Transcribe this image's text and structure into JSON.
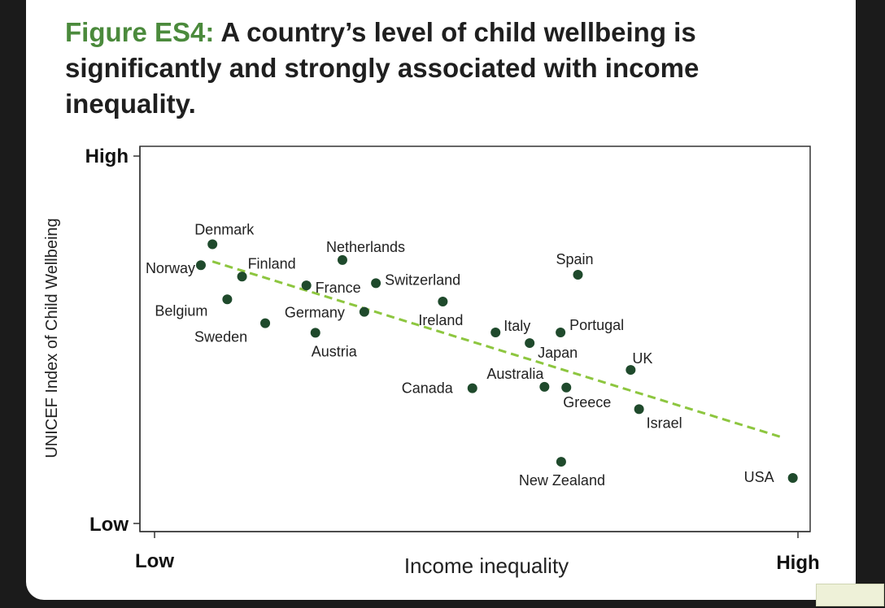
{
  "title": {
    "prefix": "Figure ES4:",
    "text": "A country’s level of child wellbeing is significantly and strongly associated with income inequality."
  },
  "colors": {
    "title_accent": "#4b8a3c",
    "point": "#1f4a2c",
    "trend": "#8dc63f"
  },
  "chart_data": {
    "type": "scatter",
    "xlabel": "Income inequality",
    "ylabel": "UNICEF Index of Child Wellbeing",
    "x_ticks": [
      "Low",
      "High"
    ],
    "y_ticks": [
      "High",
      "Low"
    ],
    "xlim": [
      0,
      1
    ],
    "ylim": [
      0,
      1
    ],
    "grid": false,
    "legend": "none",
    "points": [
      {
        "name": "Denmark",
        "x": 0.09,
        "y": 0.76
      },
      {
        "name": "Norway",
        "x": 0.072,
        "y": 0.703
      },
      {
        "name": "Finland",
        "x": 0.136,
        "y": 0.672
      },
      {
        "name": "Belgium",
        "x": 0.113,
        "y": 0.61
      },
      {
        "name": "Sweden",
        "x": 0.172,
        "y": 0.545
      },
      {
        "name": "Netherlands",
        "x": 0.292,
        "y": 0.717
      },
      {
        "name": "France",
        "x": 0.236,
        "y": 0.648
      },
      {
        "name": "Switzerland",
        "x": 0.344,
        "y": 0.654
      },
      {
        "name": "Germany",
        "x": 0.326,
        "y": 0.576
      },
      {
        "name": "Austria",
        "x": 0.25,
        "y": 0.519
      },
      {
        "name": "Ireland",
        "x": 0.448,
        "y": 0.604
      },
      {
        "name": "Italy",
        "x": 0.53,
        "y": 0.52
      },
      {
        "name": "Japan",
        "x": 0.583,
        "y": 0.491
      },
      {
        "name": "Portugal",
        "x": 0.631,
        "y": 0.52
      },
      {
        "name": "Spain",
        "x": 0.658,
        "y": 0.677
      },
      {
        "name": "UK",
        "x": 0.74,
        "y": 0.418
      },
      {
        "name": "Canada",
        "x": 0.494,
        "y": 0.368
      },
      {
        "name": "Australia",
        "x": 0.606,
        "y": 0.372
      },
      {
        "name": "Greece",
        "x": 0.64,
        "y": 0.37
      },
      {
        "name": "Israel",
        "x": 0.753,
        "y": 0.311
      },
      {
        "name": "New Zealand",
        "x": 0.632,
        "y": 0.168
      },
      {
        "name": "USA",
        "x": 0.992,
        "y": 0.124
      }
    ],
    "trendline": {
      "x": [
        0.09,
        0.978
      ],
      "y": [
        0.713,
        0.233
      ]
    }
  }
}
